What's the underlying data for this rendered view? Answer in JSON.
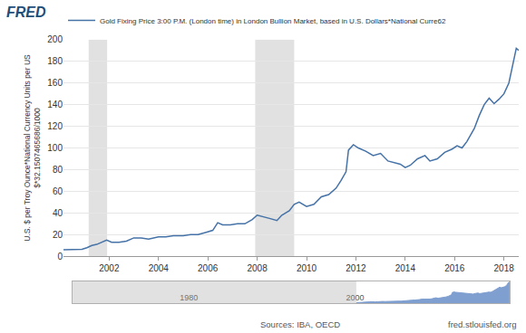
{
  "header": {
    "logo": "FRED"
  },
  "footer": {
    "source": "Sources: IBA, OECD",
    "url": "fred.stlouisfed.org"
  },
  "chart_data": [
    {
      "type": "line",
      "ylabel": "U.S. $ per Troy Ounce*National Currency Units per US $*32.1507465686/1000",
      "series": [
        {
          "name": "Gold Fixing Price 3:00 P.M. (London time) in London Bullion Market, based in U.S. Dollars*National Curre62",
          "color": "#4572a7",
          "x": [
            2000.15,
            2000.5,
            2000.9,
            2001.1,
            2001.3,
            2001.5,
            2001.7,
            2001.9,
            2002.1,
            2002.4,
            2002.7,
            2003.0,
            2003.3,
            2003.6,
            2004.0,
            2004.3,
            2004.6,
            2005.0,
            2005.3,
            2005.6,
            2005.9,
            2006.2,
            2006.4,
            2006.6,
            2006.9,
            2007.2,
            2007.5,
            2007.8,
            2008.0,
            2008.2,
            2008.5,
            2008.8,
            2009.0,
            2009.3,
            2009.5,
            2009.7,
            2010.0,
            2010.3,
            2010.6,
            2010.9,
            2011.2,
            2011.4,
            2011.6,
            2011.7,
            2011.9,
            2012.1,
            2012.4,
            2012.7,
            2013.0,
            2013.3,
            2013.5,
            2013.8,
            2014.0,
            2014.2,
            2014.5,
            2014.8,
            2015.0,
            2015.3,
            2015.6,
            2015.9,
            2016.1,
            2016.3,
            2016.5,
            2016.8,
            2017.0,
            2017.2,
            2017.4,
            2017.6,
            2017.8,
            2018.0,
            2018.2,
            2018.4,
            2018.5,
            2018.6
          ],
          "values": [
            6,
            6.3,
            6.5,
            8,
            10,
            11,
            13,
            15,
            13,
            13,
            14,
            17,
            17,
            16,
            18,
            18,
            19,
            19,
            20,
            20,
            22,
            24,
            31,
            29,
            29,
            30,
            30,
            34,
            38,
            37,
            35,
            33,
            38,
            42,
            48,
            50,
            46,
            48,
            55,
            57,
            63,
            70,
            78,
            98,
            103,
            100,
            97,
            93,
            95,
            88,
            87,
            85,
            82,
            84,
            90,
            93,
            88,
            90,
            96,
            99,
            102,
            100,
            106,
            118,
            130,
            140,
            146,
            141,
            145,
            150,
            160,
            180,
            192,
            190
          ]
        }
      ],
      "shaded_periods": [
        [
          2001.17,
          2001.92
        ],
        [
          2007.92,
          2009.5
        ]
      ],
      "xlim": [
        2000.15,
        2018.6
      ],
      "xticks": [
        2002,
        2004,
        2006,
        2008,
        2010,
        2012,
        2014,
        2016,
        2018
      ],
      "ylim": [
        0,
        200
      ],
      "yticks": [
        0,
        20,
        40,
        60,
        80,
        100,
        120,
        140,
        160,
        180,
        200
      ],
      "grid": true,
      "legend": "top"
    },
    {
      "type": "area",
      "color": "#7f9fd0",
      "x": [
        2000.15,
        2000.5,
        2000.9,
        2001.1,
        2001.3,
        2001.5,
        2001.7,
        2001.9,
        2002.1,
        2002.4,
        2002.7,
        2003.0,
        2003.3,
        2003.6,
        2004.0,
        2004.3,
        2004.6,
        2005.0,
        2005.3,
        2005.6,
        2005.9,
        2006.2,
        2006.4,
        2006.6,
        2006.9,
        2007.2,
        2007.5,
        2007.8,
        2008.0,
        2008.2,
        2008.5,
        2008.8,
        2009.0,
        2009.3,
        2009.5,
        2009.7,
        2010.0,
        2010.3,
        2010.6,
        2010.9,
        2011.2,
        2011.4,
        2011.6,
        2011.7,
        2011.9,
        2012.1,
        2012.4,
        2012.7,
        2013.0,
        2013.3,
        2013.5,
        2013.8,
        2014.0,
        2014.2,
        2014.5,
        2014.8,
        2015.0,
        2015.3,
        2015.6,
        2015.9,
        2016.1,
        2016.3,
        2016.5,
        2016.8,
        2017.0,
        2017.2,
        2017.4,
        2017.6,
        2017.8,
        2018.0,
        2018.2,
        2018.4,
        2018.5,
        2018.6
      ],
      "values": [
        6,
        6.3,
        6.5,
        8,
        10,
        11,
        13,
        15,
        13,
        13,
        14,
        17,
        17,
        16,
        18,
        18,
        19,
        19,
        20,
        20,
        22,
        24,
        31,
        29,
        29,
        30,
        30,
        34,
        38,
        37,
        35,
        33,
        38,
        42,
        48,
        50,
        46,
        48,
        55,
        57,
        63,
        70,
        78,
        98,
        103,
        100,
        97,
        93,
        95,
        88,
        87,
        85,
        82,
        84,
        90,
        93,
        88,
        90,
        96,
        99,
        102,
        100,
        106,
        118,
        130,
        140,
        146,
        141,
        145,
        150,
        160,
        180,
        192,
        190
      ],
      "xlim": [
        1966,
        2018.6
      ],
      "xticks": [
        1980,
        2000
      ],
      "ylim": [
        0,
        200
      ],
      "grid": false,
      "tick_labels": "x"
    }
  ]
}
